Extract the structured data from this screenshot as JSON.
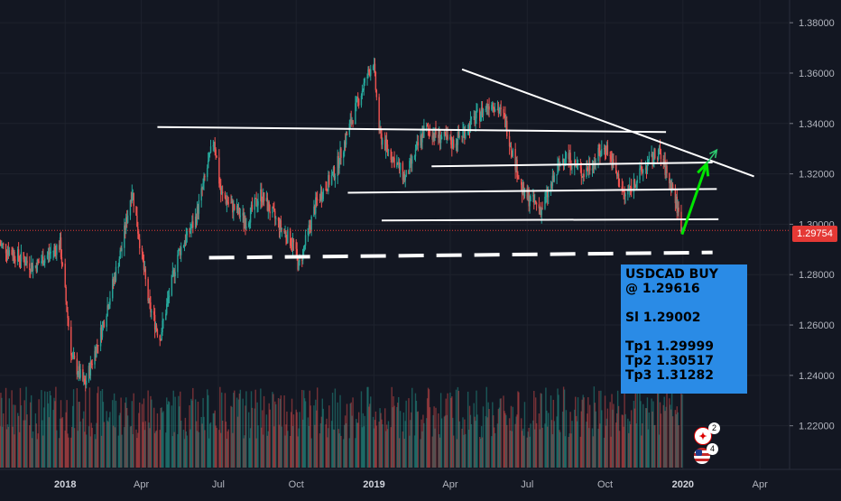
{
  "chart_data": {
    "type": "candlestick",
    "symbol": "USDCAD",
    "y_axis": {
      "ticks": [
        "1.38000",
        "1.36000",
        "1.34000",
        "1.32000",
        "1.30000",
        "1.28000",
        "1.26000",
        "1.24000",
        "1.22000"
      ],
      "range": [
        1.212,
        1.384
      ],
      "position": "right"
    },
    "x_axis": {
      "ticks": [
        {
          "label": "2018",
          "bold": true
        },
        {
          "label": "Apr",
          "bold": false
        },
        {
          "label": "Jul",
          "bold": false
        },
        {
          "label": "Oct",
          "bold": false
        },
        {
          "label": "2019",
          "bold": true
        },
        {
          "label": "Apr",
          "bold": false
        },
        {
          "label": "Jul",
          "bold": false
        },
        {
          "label": "Oct",
          "bold": false
        },
        {
          "label": "2020",
          "bold": true
        },
        {
          "label": "Apr",
          "bold": false
        }
      ],
      "tick_dates": [
        "2018-01",
        "2018-04",
        "2018-07",
        "2018-10",
        "2019-01",
        "2019-04",
        "2019-07",
        "2019-10",
        "2020-01",
        "2020-04"
      ],
      "range": [
        "2017-10-16",
        "2020-05-06"
      ]
    },
    "price_anchors": [
      {
        "date": "2017-10-16",
        "price": 1.292
      },
      {
        "date": "2017-11-25",
        "price": 1.283
      },
      {
        "date": "2017-12-26",
        "price": 1.292
      },
      {
        "date": "2018-01-09",
        "price": 1.247
      },
      {
        "date": "2018-01-24",
        "price": 1.236
      },
      {
        "date": "2018-02-13",
        "price": 1.258
      },
      {
        "date": "2018-03-09",
        "price": 1.291
      },
      {
        "date": "2018-03-21",
        "price": 1.314
      },
      {
        "date": "2018-04-10",
        "price": 1.268
      },
      {
        "date": "2018-04-23",
        "price": 1.255
      },
      {
        "date": "2018-05-14",
        "price": 1.288
      },
      {
        "date": "2018-06-04",
        "price": 1.302
      },
      {
        "date": "2018-06-26",
        "price": 1.334
      },
      {
        "date": "2018-07-04",
        "price": 1.312
      },
      {
        "date": "2018-08-03",
        "price": 1.301
      },
      {
        "date": "2018-08-20",
        "price": 1.312
      },
      {
        "date": "2018-09-10",
        "price": 1.3
      },
      {
        "date": "2018-09-28",
        "price": 1.292
      },
      {
        "date": "2018-10-04",
        "price": 1.283
      },
      {
        "date": "2018-10-25",
        "price": 1.309
      },
      {
        "date": "2018-11-16",
        "price": 1.321
      },
      {
        "date": "2018-12-12",
        "price": 1.348
      },
      {
        "date": "2018-12-31",
        "price": 1.365
      },
      {
        "date": "2019-01-08",
        "price": 1.335
      },
      {
        "date": "2019-02-07",
        "price": 1.318
      },
      {
        "date": "2019-03-02",
        "price": 1.338
      },
      {
        "date": "2019-04-04",
        "price": 1.332
      },
      {
        "date": "2019-05-20",
        "price": 1.349
      },
      {
        "date": "2019-06-04",
        "price": 1.342
      },
      {
        "date": "2019-06-26",
        "price": 1.312
      },
      {
        "date": "2019-07-18",
        "price": 1.306
      },
      {
        "date": "2019-08-14",
        "price": 1.328
      },
      {
        "date": "2019-09-05",
        "price": 1.32
      },
      {
        "date": "2019-10-02",
        "price": 1.331
      },
      {
        "date": "2019-10-24",
        "price": 1.311
      },
      {
        "date": "2019-11-09",
        "price": 1.319
      },
      {
        "date": "2019-12-03",
        "price": 1.329
      },
      {
        "date": "2019-12-21",
        "price": 1.313
      },
      {
        "date": "2019-12-31",
        "price": 1.298
      }
    ],
    "last_price": "1.29754",
    "volume_panel": true,
    "up_color": "#26a69a",
    "down_color": "#ef5350",
    "grid": true,
    "drawings": {
      "trendlines": [
        {
          "from": {
            "date": "2018-04-20",
            "price": 1.3386
          },
          "to": {
            "date": "2019-12-12",
            "price": 1.3366
          }
        },
        {
          "from": {
            "date": "2019-04-15",
            "price": 1.3615
          },
          "to": {
            "date": "2020-03-25",
            "price": 1.319
          }
        },
        {
          "from": {
            "date": "2019-03-10",
            "price": 1.323
          },
          "to": {
            "date": "2020-02-05",
            "price": 1.3245
          }
        },
        {
          "from": {
            "date": "2018-12-01",
            "price": 1.3125
          },
          "to": {
            "date": "2020-02-10",
            "price": 1.314
          }
        },
        {
          "from": {
            "date": "2019-01-10",
            "price": 1.3015
          },
          "to": {
            "date": "2020-02-12",
            "price": 1.302
          }
        }
      ],
      "dashed_support": {
        "from": {
          "date": "2018-06-20",
          "price": 1.2867
        },
        "to": {
          "date": "2020-02-05",
          "price": 1.2888
        }
      },
      "projection_arrows": [
        {
          "from": {
            "date": "2019-12-31",
            "price": 1.296
          },
          "to": {
            "date": "2020-01-29",
            "price": 1.324
          },
          "color": "#00e600"
        },
        {
          "from": {
            "date": "2020-01-29",
            "price": 1.324
          },
          "to": {
            "date": "2020-02-10",
            "price": 1.3295
          },
          "color": "#2ecc71"
        }
      ]
    }
  },
  "signal": {
    "line1": "USDCAD BUY",
    "line2": "@ 1.29616",
    "line3": "Sl 1.29002",
    "line4": "Tp1 1.29999",
    "line5": "Tp2 1.30517",
    "line6": "Tp3 1.31282",
    "color": "#2a8be6"
  },
  "events": [
    {
      "icon": "canada-flag-icon",
      "count": "2"
    },
    {
      "icon": "us-flag-icon",
      "count": "4"
    }
  ]
}
